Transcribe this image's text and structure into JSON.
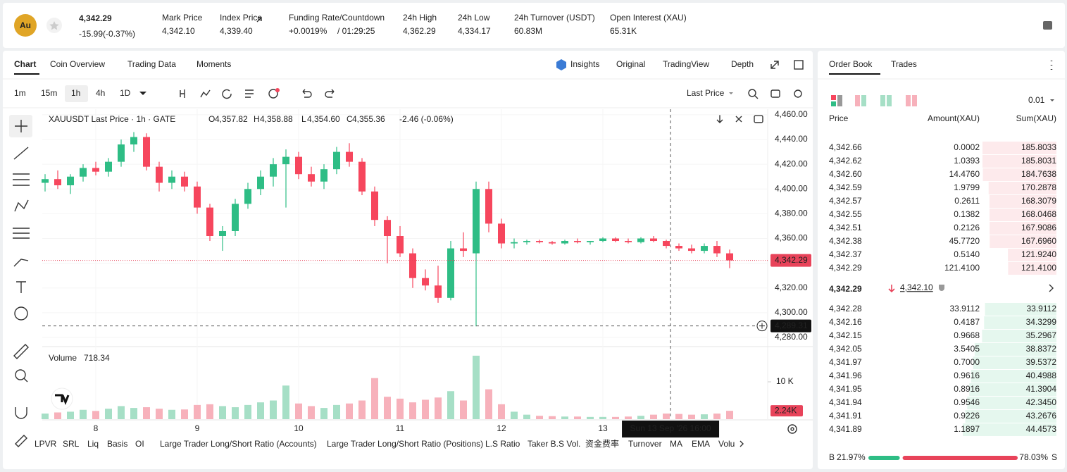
{
  "header": {
    "symbol_icon": "Au",
    "last_price": "4,342.29",
    "change": "-15.99(-0.37%)",
    "stats": [
      {
        "label": "Mark Price",
        "value": "4,342.10"
      },
      {
        "label": "Index Price",
        "value": "4,339.40"
      },
      {
        "label": "Funding Rate/Countdown",
        "value": "+0.0019%",
        "value_color": "#2ebd85",
        "extra": "/ 01:29:25"
      },
      {
        "label": "24h High",
        "value": "4,362.29"
      },
      {
        "label": "24h Low",
        "value": "4,334.17"
      },
      {
        "label": "24h Turnover (USDT)",
        "value": "60.83M"
      },
      {
        "label": "Open Interest (XAU)",
        "value": "65.31K"
      }
    ]
  },
  "tabs": [
    "Chart",
    "Coin Overview",
    "Trading Data",
    "Moments"
  ],
  "view_options": [
    "Insights",
    "Original",
    "TradingView",
    "Depth"
  ],
  "intervals": [
    "1m",
    "15m",
    "1h",
    "4h",
    "1D"
  ],
  "price_type": "Last Price",
  "chart_data": {
    "type": "candlestick",
    "title": "XAUUSDT Last Price · 1h · GATE",
    "ohlc_legend": [
      {
        "label": "O",
        "value": "4,357.82"
      },
      {
        "label": "H",
        "value": "4,358.88"
      },
      {
        "label": "L",
        "value": "4,354.60"
      },
      {
        "label": "C",
        "value": "4,355.36"
      }
    ],
    "change_legend": "-2.46 (-0.06%)",
    "up_color": "#2ebd85",
    "down_color": "#f6465d",
    "up_volume_color": "#a6dfc6",
    "down_volume_color": "#f7b1bb",
    "x": [
      7.5,
      7.625,
      7.75,
      7.875,
      8,
      8.125,
      8.25,
      8.375,
      8.5,
      8.625,
      8.75,
      8.875,
      9,
      9.125,
      9.25,
      9.375,
      9.5,
      9.625,
      9.75,
      9.875,
      10,
      10.125,
      10.25,
      10.375,
      10.5,
      10.625,
      10.75,
      10.875,
      11,
      11.125,
      11.25,
      11.375,
      11.5,
      11.625,
      11.75,
      11.875,
      12,
      12.125,
      12.25,
      12.375,
      12.5,
      12.625,
      12.75,
      12.875,
      13,
      13.125,
      13.25,
      13.375,
      13.5,
      13.625,
      13.75,
      13.875,
      14,
      14.125,
      14.25
    ],
    "ohlc": [
      [
        4405,
        4412,
        4398,
        4408
      ],
      [
        4408,
        4415,
        4400,
        4403
      ],
      [
        4403,
        4412,
        4396,
        4410
      ],
      [
        4410,
        4420,
        4406,
        4417
      ],
      [
        4417,
        4422,
        4411,
        4414
      ],
      [
        4414,
        4425,
        4410,
        4422
      ],
      [
        4422,
        4440,
        4418,
        4436
      ],
      [
        4436,
        4446,
        4430,
        4442
      ],
      [
        4442,
        4445,
        4415,
        4418
      ],
      [
        4418,
        4422,
        4398,
        4405
      ],
      [
        4405,
        4415,
        4400,
        4410
      ],
      [
        4410,
        4414,
        4398,
        4402
      ],
      [
        4402,
        4406,
        4380,
        4385
      ],
      [
        4385,
        4388,
        4358,
        4362
      ],
      [
        4362,
        4370,
        4350,
        4366
      ],
      [
        4366,
        4392,
        4362,
        4388
      ],
      [
        4388,
        4405,
        4384,
        4400
      ],
      [
        4400,
        4415,
        4395,
        4410
      ],
      [
        4410,
        4425,
        4402,
        4420
      ],
      [
        4420,
        4432,
        4385,
        4426
      ],
      [
        4426,
        4430,
        4408,
        4412
      ],
      [
        4412,
        4418,
        4402,
        4406
      ],
      [
        4406,
        4420,
        4400,
        4416
      ],
      [
        4416,
        4434,
        4412,
        4430
      ],
      [
        4430,
        4437,
        4418,
        4422
      ],
      [
        4422,
        4425,
        4395,
        4398
      ],
      [
        4398,
        4402,
        4370,
        4375
      ],
      [
        4375,
        4378,
        4340,
        4362
      ],
      [
        4362,
        4370,
        4345,
        4348
      ],
      [
        4348,
        4352,
        4320,
        4328
      ],
      [
        4328,
        4335,
        4318,
        4322
      ],
      [
        4322,
        4338,
        4308,
        4312
      ],
      [
        4312,
        4358,
        4310,
        4352
      ],
      [
        4352,
        4365,
        4345,
        4350
      ],
      [
        4348,
        4406,
        4289,
        4400
      ],
      [
        4400,
        4406,
        4365,
        4372
      ],
      [
        4372,
        4376,
        4352,
        4356
      ],
      [
        4356,
        4360,
        4352,
        4357
      ],
      [
        4357,
        4359,
        4355,
        4358
      ],
      [
        4358,
        4359,
        4356,
        4357
      ],
      [
        4357,
        4358,
        4355,
        4356
      ],
      [
        4356,
        4359,
        4355,
        4358
      ],
      [
        4358,
        4360,
        4356,
        4357
      ],
      [
        4357,
        4358,
        4355,
        4358
      ],
      [
        4358,
        4361,
        4357,
        4360
      ],
      [
        4360,
        4361,
        4357,
        4358
      ],
      [
        4358,
        4360,
        4356,
        4357
      ],
      [
        4357,
        4361,
        4356,
        4360
      ],
      [
        4360,
        4362,
        4357,
        4358
      ],
      [
        4358,
        4359,
        4352,
        4354
      ],
      [
        4354,
        4356,
        4350,
        4352
      ],
      [
        4352,
        4355,
        4348,
        4350
      ],
      [
        4350,
        4356,
        4348,
        4354
      ],
      [
        4354,
        4358,
        4345,
        4348
      ],
      [
        4348,
        4351,
        4336,
        4342.29
      ]
    ],
    "xlim": [
      7.4722,
      14.625
    ],
    "xticks": [
      8,
      9,
      10,
      11,
      12,
      13
    ],
    "ylim": [
      4272.6,
      4464.5
    ],
    "yticks": [
      {
        "value": 4280,
        "label": "4,280.00"
      },
      {
        "value": 4300,
        "label": "4,300.00"
      },
      {
        "value": 4320,
        "label": "4,320.00"
      },
      {
        "value": 4340,
        "label": "4,340.00"
      },
      {
        "value": 4360,
        "label": "4,360.00"
      },
      {
        "value": 4380,
        "label": "4,380.00"
      },
      {
        "value": 4400,
        "label": "4,400.00"
      },
      {
        "value": 4420,
        "label": "4,420.00"
      },
      {
        "value": 4440,
        "label": "4,440.00"
      },
      {
        "value": 4460,
        "label": "4,460.00"
      }
    ],
    "grid": true,
    "last_price_label": "4,342.29",
    "crosshair": {
      "price": {
        "value": 4289.31,
        "label": "4,289.31"
      },
      "x": 13.667,
      "time": "Sun 13 Sep '26  16:00"
    },
    "volume_title": "Volume",
    "volume_value": "718.34",
    "volumes": [
      1500,
      1800,
      2000,
      2500,
      2200,
      2800,
      3500,
      3000,
      3200,
      2800,
      2500,
      2600,
      3800,
      4000,
      3500,
      3200,
      3800,
      4500,
      5000,
      9000,
      4200,
      3500,
      3000,
      3800,
      4200,
      5000,
      11000,
      6000,
      5500,
      4500,
      5200,
      5800,
      7500,
      5000,
      17000,
      8000,
      4000,
      2000,
      1200,
      900,
      800,
      700,
      700,
      600,
      600,
      600,
      700,
      900,
      1200,
      1500,
      1400,
      1200,
      1300,
      1500,
      2240
    ],
    "volume_lim": [
      0,
      17925
    ],
    "volume_ticks": [
      {
        "value": 10000,
        "label": "10 K"
      }
    ],
    "volume_tag": "2.24K"
  },
  "indicators": [
    "LPVR",
    "SRL",
    "Liq",
    "Basis",
    "OI",
    "Large Trader Long/Short Ratio (Accounts)",
    "Large Trader Long/Short Ratio (Positions)",
    "L.S Ratio",
    "Taker B.S Vol.",
    "资金费率",
    "Turnover",
    "MA",
    "EMA",
    "Volu"
  ],
  "order_book": {
    "tabs": [
      "Order Book",
      "Trades"
    ],
    "precision": "0.01",
    "columns": [
      "Price",
      "Amount(XAU)",
      "Sum(XAU)"
    ],
    "asks": {
      "prices": [
        "4,342.66",
        "4,342.62",
        "4,342.60",
        "4,342.59",
        "4,342.57",
        "4,342.55",
        "4,342.51",
        "4,342.38",
        "4,342.37",
        "4,342.29"
      ],
      "amounts": [
        "0.0002",
        "1.0393",
        "14.4760",
        "1.9799",
        "0.2611",
        "0.1382",
        "0.2126",
        "45.7720",
        "0.5140",
        "121.4100"
      ],
      "sums": [
        185.8033,
        185.8031,
        184.7638,
        170.2878,
        168.3079,
        168.0468,
        167.9086,
        167.696,
        121.924,
        121.41
      ],
      "sum_labels": [
        "185.8033",
        "185.8031",
        "184.7638",
        "170.2878",
        "168.3079",
        "168.0468",
        "167.9086",
        "167.6960",
        "121.9240",
        "121.4100"
      ]
    },
    "mid_price": "4,342.29",
    "mark_price": "4,342.10",
    "bids": {
      "prices": [
        "4,342.28",
        "4,342.16",
        "4,342.15",
        "4,342.05",
        "4,341.97",
        "4,341.96",
        "4,341.95",
        "4,341.94",
        "4,341.91",
        "4,341.89"
      ],
      "amounts": [
        "33.9112",
        "0.4187",
        "0.9668",
        "3.5405",
        "0.7000",
        "0.9616",
        "0.8916",
        "0.9546",
        "0.9226",
        "1.1897"
      ],
      "sums": [
        33.9112,
        34.3299,
        35.2967,
        38.8372,
        39.5372,
        40.4988,
        41.3904,
        42.345,
        43.2676,
        44.4573
      ],
      "sum_labels": [
        "33.9112",
        "34.3299",
        "35.2967",
        "38.8372",
        "39.5372",
        "40.4988",
        "41.3904",
        "42.3450",
        "43.2676",
        "44.4573"
      ]
    },
    "buy_letter": "B",
    "buy": 21.97,
    "buy_label": "21.97%",
    "sell": 78.03,
    "sell_label": "78.03%",
    "sell_letter": "S"
  }
}
